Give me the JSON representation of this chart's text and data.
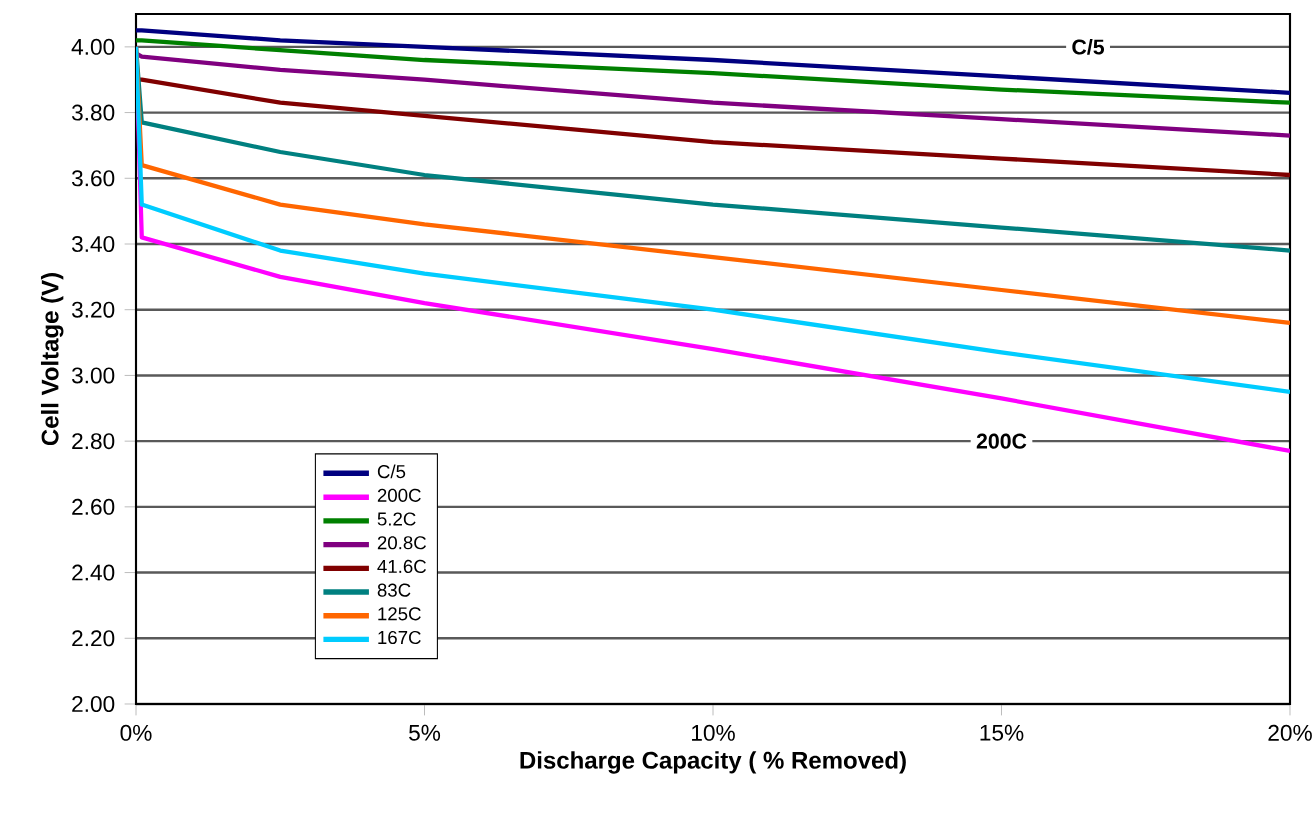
{
  "chart_data": {
    "type": "line",
    "xlabel": "Discharge Capacity ( % Removed)",
    "ylabel": "Cell Voltage (V)",
    "xlim": [
      0,
      20
    ],
    "ylim": [
      2.0,
      4.1
    ],
    "xticks": [
      {
        "value": 0,
        "label": "0%"
      },
      {
        "value": 5,
        "label": "5%"
      },
      {
        "value": 10,
        "label": "10%"
      },
      {
        "value": 15,
        "label": "15%"
      },
      {
        "value": 20,
        "label": "20%"
      }
    ],
    "yticks": [
      {
        "value": 2.0,
        "label": "2.00"
      },
      {
        "value": 2.2,
        "label": "2.20"
      },
      {
        "value": 2.4,
        "label": "2.40"
      },
      {
        "value": 2.6,
        "label": "2.60"
      },
      {
        "value": 2.8,
        "label": "2.80"
      },
      {
        "value": 3.0,
        "label": "3.00"
      },
      {
        "value": 3.2,
        "label": "3.20"
      },
      {
        "value": 3.4,
        "label": "3.40"
      },
      {
        "value": 3.6,
        "label": "3.60"
      },
      {
        "value": 3.8,
        "label": "3.80"
      },
      {
        "value": 4.0,
        "label": "4.00"
      }
    ],
    "grid": "y",
    "legend": "bottom left",
    "marker": "none",
    "line_style": "solid",
    "x": [
      0,
      0.1,
      2.5,
      5,
      10,
      15,
      20
    ],
    "series": [
      {
        "name": "C/5",
        "color": "#000080",
        "values": [
          4.05,
          4.05,
          4.02,
          4.0,
          3.96,
          3.91,
          3.86
        ]
      },
      {
        "name": "200C",
        "color": "#ff00ff",
        "values": [
          4.0,
          3.42,
          3.3,
          3.22,
          3.08,
          2.93,
          2.77
        ]
      },
      {
        "name": "5.2C",
        "color": "#008000",
        "values": [
          4.02,
          4.02,
          3.99,
          3.96,
          3.92,
          3.87,
          3.83
        ]
      },
      {
        "name": "20.8C",
        "color": "#800080",
        "values": [
          3.98,
          3.97,
          3.93,
          3.9,
          3.83,
          3.78,
          3.73
        ]
      },
      {
        "name": "41.6C",
        "color": "#800000",
        "values": [
          3.9,
          3.9,
          3.83,
          3.79,
          3.71,
          3.66,
          3.61
        ]
      },
      {
        "name": "83C",
        "color": "#008080",
        "values": [
          4.0,
          3.77,
          3.68,
          3.61,
          3.52,
          3.45,
          3.38
        ]
      },
      {
        "name": "125C",
        "color": "#ff6600",
        "values": [
          4.0,
          3.64,
          3.52,
          3.46,
          3.36,
          3.26,
          3.16
        ]
      },
      {
        "name": "167C",
        "color": "#00ccff",
        "values": [
          4.0,
          3.52,
          3.38,
          3.31,
          3.2,
          3.07,
          2.95
        ]
      }
    ],
    "annotations": [
      {
        "text": "C/5",
        "x": 16.5,
        "y": 4.0
      },
      {
        "text": "200C",
        "x": 15,
        "y": 2.8
      }
    ]
  }
}
